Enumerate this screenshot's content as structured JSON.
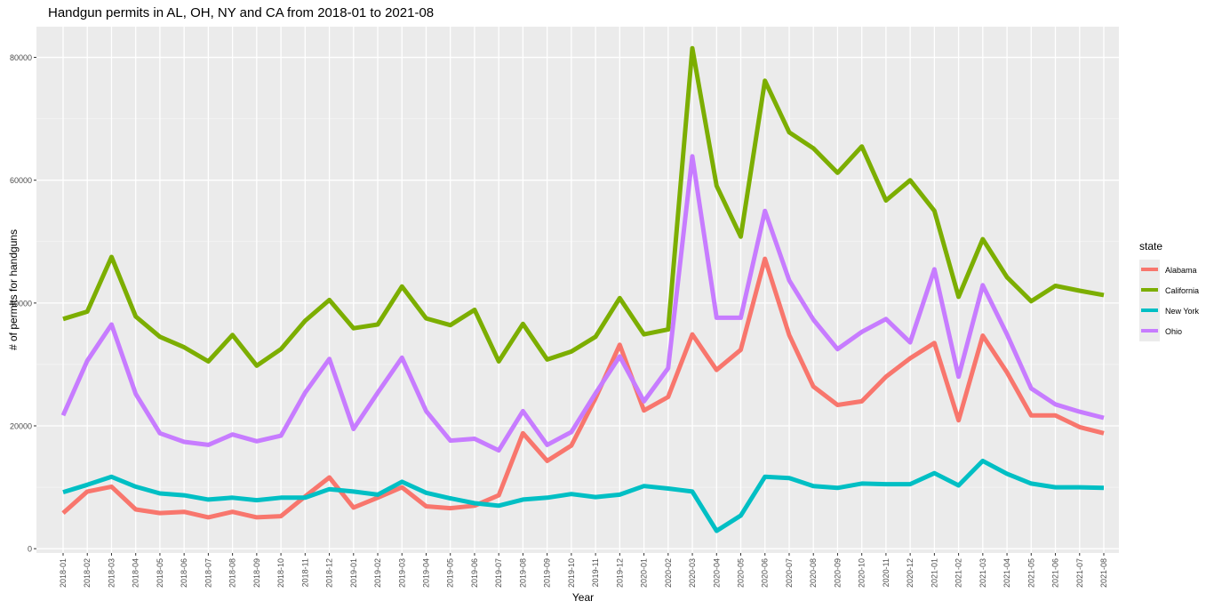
{
  "chart_data": {
    "type": "line",
    "title": "Handgun permits in AL, OH, NY and CA from 2018-01 to 2021-08",
    "xlabel": "Year",
    "ylabel": "# of permits for handguns",
    "ylim": [
      -700,
      85000
    ],
    "yticks": [
      0,
      20000,
      40000,
      60000,
      80000
    ],
    "ytick_labels": [
      "0",
      "20000",
      "40000",
      "60000",
      "80000"
    ],
    "grid": true,
    "legend_position": "right",
    "legend_title": "state",
    "x": [
      "2018-01",
      "2018-02",
      "2018-03",
      "2018-04",
      "2018-05",
      "2018-06",
      "2018-07",
      "2018-08",
      "2018-09",
      "2018-10",
      "2018-11",
      "2018-12",
      "2019-01",
      "2019-02",
      "2019-03",
      "2019-04",
      "2019-05",
      "2019-06",
      "2019-07",
      "2019-08",
      "2019-09",
      "2019-10",
      "2019-11",
      "2019-12",
      "2020-01",
      "2020-02",
      "2020-03",
      "2020-04",
      "2020-05",
      "2020-06",
      "2020-07",
      "2020-08",
      "2020-09",
      "2020-10",
      "2020-11",
      "2020-12",
      "2021-01",
      "2021-02",
      "2021-03",
      "2021-04",
      "2021-05",
      "2021-06",
      "2021-07",
      "2021-08"
    ],
    "series": [
      {
        "name": "Alabama",
        "color": "#F8766D",
        "values": [
          5800,
          9300,
          10100,
          6400,
          5800,
          6000,
          5100,
          6000,
          5100,
          5300,
          8500,
          11600,
          6700,
          8300,
          10000,
          6900,
          6600,
          7000,
          8700,
          18800,
          14300,
          16800,
          24500,
          33200,
          22500,
          24700,
          34900,
          29100,
          32400,
          47200,
          34800,
          26400,
          23400,
          24000,
          28000,
          31000,
          33500,
          20900,
          34700,
          28700,
          21700,
          21700,
          19800,
          18800
        ]
      },
      {
        "name": "California",
        "color": "#7CAE00",
        "values": [
          37400,
          38600,
          47500,
          37800,
          34500,
          32800,
          30500,
          34800,
          29800,
          32500,
          37100,
          40500,
          35900,
          36500,
          42700,
          37500,
          36400,
          38900,
          30500,
          36600,
          30800,
          32100,
          34500,
          40800,
          34900,
          35700,
          81500,
          59100,
          50800,
          76200,
          67800,
          65200,
          61200,
          65500,
          56700,
          60000,
          55000,
          41000,
          50400,
          44200,
          40300,
          42800,
          42000,
          41300
        ]
      },
      {
        "name": "New York",
        "color": "#00BFC4",
        "values": [
          9200,
          10400,
          11700,
          10100,
          9000,
          8700,
          8000,
          8300,
          7900,
          8300,
          8300,
          9700,
          9300,
          8800,
          10900,
          9100,
          8200,
          7400,
          7000,
          8000,
          8300,
          8900,
          8400,
          8800,
          10200,
          9800,
          9300,
          2900,
          5400,
          11700,
          11500,
          10200,
          9900,
          10600,
          10500,
          10500,
          12300,
          10300,
          14300,
          12200,
          10600,
          10000,
          10000,
          9900
        ]
      },
      {
        "name": "Ohio",
        "color": "#C77CFF",
        "values": [
          21700,
          30600,
          36500,
          25200,
          18800,
          17400,
          16900,
          18600,
          17500,
          18400,
          25400,
          30900,
          19500,
          25400,
          31100,
          22400,
          17600,
          17900,
          16000,
          22400,
          16900,
          19000,
          25300,
          31300,
          24000,
          29400,
          63900,
          37600,
          37600,
          55000,
          43700,
          37300,
          32500,
          35300,
          37400,
          33600,
          45500,
          28000,
          42900,
          34900,
          26100,
          23500,
          22300,
          21300
        ]
      }
    ]
  }
}
